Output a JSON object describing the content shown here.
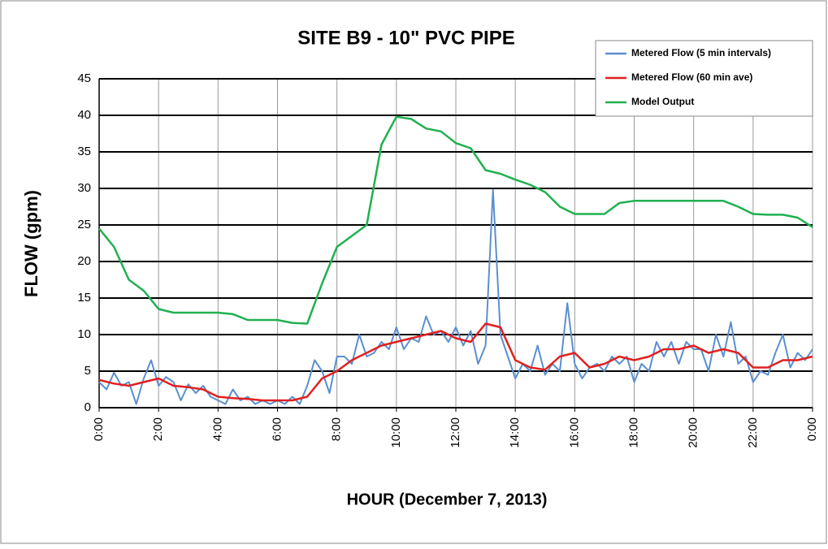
{
  "chart_data": {
    "type": "line",
    "title": "SITE B9 -  10\" PVC PIPE",
    "xlabel": "HOUR (December 7, 2013)",
    "ylabel": "FLOW (gpm)",
    "xlim": [
      0,
      24
    ],
    "xticks": [
      {
        "value": 0,
        "label": "0:00"
      },
      {
        "value": 2,
        "label": "2:00"
      },
      {
        "value": 4,
        "label": "4:00"
      },
      {
        "value": 6,
        "label": "6:00"
      },
      {
        "value": 8,
        "label": "8:00"
      },
      {
        "value": 10,
        "label": "10:00"
      },
      {
        "value": 12,
        "label": "12:00"
      },
      {
        "value": 14,
        "label": "14:00"
      },
      {
        "value": 16,
        "label": "16:00"
      },
      {
        "value": 18,
        "label": "18:00"
      },
      {
        "value": 20,
        "label": "20:00"
      },
      {
        "value": 22,
        "label": "22:00"
      },
      {
        "value": 24,
        "label": "0:00"
      }
    ],
    "ylim": [
      0,
      45
    ],
    "yticks": [
      0,
      5,
      10,
      15,
      20,
      25,
      30,
      35,
      40,
      45
    ],
    "grid": true,
    "legend": "upper right",
    "series": [
      {
        "name": "Metered Flow (5 min intervals)",
        "color": "#5b8fd0",
        "x": [
          0,
          0.25,
          0.5,
          0.75,
          1,
          1.25,
          1.5,
          1.75,
          2,
          2.25,
          2.5,
          2.75,
          3,
          3.25,
          3.5,
          3.75,
          4,
          4.25,
          4.5,
          4.75,
          5,
          5.25,
          5.5,
          5.75,
          6,
          6.25,
          6.5,
          6.75,
          7,
          7.25,
          7.5,
          7.75,
          8,
          8.25,
          8.5,
          8.75,
          9,
          9.25,
          9.5,
          9.75,
          10,
          10.25,
          10.5,
          10.75,
          11,
          11.25,
          11.5,
          11.75,
          12,
          12.25,
          12.5,
          12.75,
          13,
          13.25,
          13.5,
          13.75,
          14,
          14.25,
          14.5,
          14.75,
          15,
          15.25,
          15.5,
          15.75,
          16,
          16.25,
          16.5,
          16.75,
          17,
          17.25,
          17.5,
          17.75,
          18,
          18.25,
          18.5,
          18.75,
          19,
          19.25,
          19.5,
          19.75,
          20,
          20.25,
          20.5,
          20.75,
          21,
          21.25,
          21.5,
          21.75,
          22,
          22.25,
          22.5,
          22.75,
          23,
          23.25,
          23.5,
          23.75,
          24
        ],
        "values": [
          3.5,
          2.5,
          4.8,
          3,
          3.5,
          0.5,
          4,
          6.5,
          3,
          4.2,
          3.5,
          1,
          3.2,
          2,
          3,
          1.5,
          1,
          0.5,
          2.5,
          1,
          1.5,
          0.5,
          1,
          0.5,
          1,
          0.5,
          1.5,
          0.5,
          3,
          6.5,
          5,
          2,
          7,
          7,
          6,
          10,
          7,
          7.5,
          9,
          8,
          11,
          8,
          9.5,
          9,
          12.5,
          10,
          10.5,
          9,
          11,
          8.5,
          10.5,
          6,
          8.5,
          29.8,
          10,
          7,
          4,
          6,
          5,
          8.5,
          4.5,
          6,
          5,
          14.3,
          6,
          4,
          5.5,
          6,
          5,
          7,
          6,
          7,
          3.5,
          6,
          5,
          9,
          7,
          9,
          6,
          9,
          8,
          8,
          5,
          10,
          7,
          11.7,
          6,
          7,
          3.5,
          5,
          4.5,
          7.5,
          10,
          5.5,
          7.5,
          6.5,
          8
        ]
      },
      {
        "name": "Metered Flow (60 min ave)",
        "color": "#e02020",
        "x": [
          0,
          0.5,
          1,
          1.5,
          2,
          2.5,
          3,
          3.5,
          4,
          4.5,
          5,
          5.5,
          6,
          6.5,
          7,
          7.5,
          8,
          8.5,
          9,
          9.5,
          10,
          10.5,
          11,
          11.5,
          12,
          12.5,
          13,
          13.5,
          14,
          14.5,
          15,
          15.5,
          16,
          16.5,
          17,
          17.5,
          18,
          18.5,
          19,
          19.5,
          20,
          20.5,
          21,
          21.5,
          22,
          22.5,
          23,
          23.5,
          24
        ],
        "values": [
          3.8,
          3.3,
          3,
          3.5,
          4,
          3,
          2.8,
          2.5,
          1.5,
          1.3,
          1.2,
          1,
          1,
          1,
          1.5,
          4,
          5,
          6.5,
          7.5,
          8.5,
          9,
          9.5,
          10,
          10.5,
          9.5,
          9,
          11.5,
          11,
          6.5,
          5.5,
          5.2,
          7,
          7.5,
          5.5,
          6,
          7,
          6.5,
          7,
          8,
          8,
          8.5,
          7.5,
          8,
          7.5,
          5.5,
          5.5,
          6.5,
          6.5,
          7
        ]
      },
      {
        "name": "Model Output",
        "color": "#20b050",
        "x": [
          0,
          0.5,
          1,
          1.5,
          2,
          2.5,
          3,
          3.5,
          4,
          4.5,
          5,
          5.5,
          6,
          6.5,
          7,
          7.5,
          8,
          8.5,
          9,
          9.5,
          10,
          10.5,
          11,
          11.5,
          12,
          12.5,
          13,
          13.5,
          14,
          14.5,
          15,
          15.5,
          16,
          16.5,
          17,
          17.5,
          18,
          18.5,
          19,
          19.5,
          20,
          20.5,
          21,
          21.5,
          22,
          22.5,
          23,
          23.5,
          24
        ],
        "values": [
          24.5,
          22,
          17.5,
          16,
          13.5,
          13,
          13,
          13,
          13,
          12.8,
          12,
          12,
          12,
          11.6,
          11.5,
          17,
          22,
          23.5,
          25,
          36,
          39.8,
          39.5,
          38.2,
          37.8,
          36.2,
          35.5,
          32.5,
          32,
          31.2,
          30.5,
          29.5,
          27.5,
          26.5,
          26.5,
          26.5,
          28,
          28.3,
          28.3,
          28.3,
          28.3,
          28.3,
          28.3,
          28.3,
          27.5,
          26.5,
          26.4,
          26.4,
          26,
          24.7
        ]
      }
    ]
  }
}
